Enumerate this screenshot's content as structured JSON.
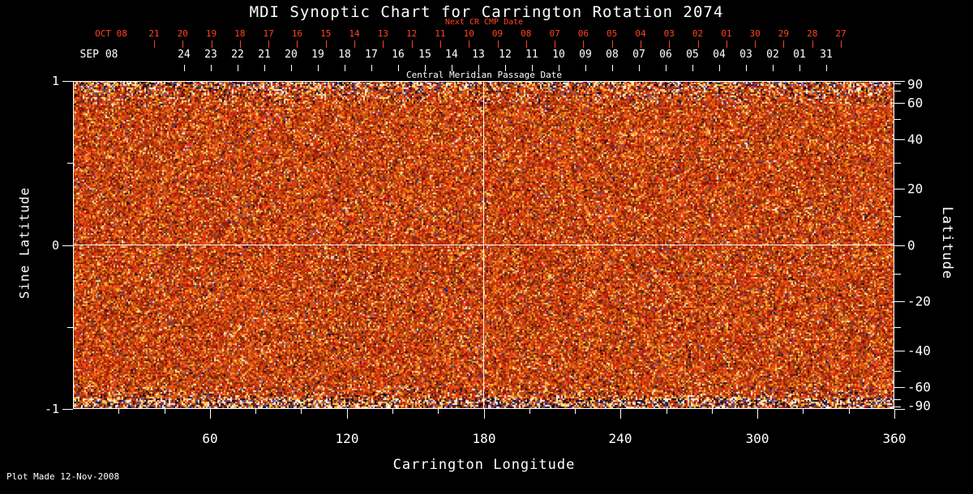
{
  "title": "MDI Synoptic Chart for Carrington Rotation 2074",
  "plot_made": "Plot Made 12-Nov-2008",
  "colors": {
    "background": "#000000",
    "axis": "#ffffff",
    "red_labels": "#ff4422",
    "reference_line": "#ffffff"
  },
  "top_axis": {
    "next_cr_label": "Next CR CMP Date",
    "cmp_label": "Central Meridian Passage Date",
    "red_month": "OCT 08",
    "red_dates": [
      "21",
      "20",
      "19",
      "18",
      "17",
      "16",
      "15",
      "14",
      "13",
      "12",
      "11",
      "10",
      "09",
      "08",
      "07",
      "06",
      "05",
      "04",
      "03",
      "02",
      "01",
      "30",
      "29",
      "28",
      "27"
    ],
    "white_month": "SEP 08",
    "white_dates": [
      "24",
      "23",
      "22",
      "21",
      "20",
      "19",
      "18",
      "17",
      "16",
      "15",
      "14",
      "13",
      "12",
      "11",
      "10",
      "09",
      "08",
      "07",
      "06",
      "05",
      "04",
      "03",
      "02",
      "01",
      "31"
    ]
  },
  "left_axis": {
    "label": "Sine Latitude",
    "tick_labels": [
      "1",
      "0",
      "-1"
    ],
    "tick_values": [
      1,
      0,
      -1
    ],
    "minor_tick_values": [
      0.5,
      -0.5
    ]
  },
  "right_axis": {
    "label": "Latitude",
    "tick_labels": [
      "90",
      "60",
      "40",
      "20",
      "0",
      "-20",
      "-40",
      "-60",
      "-90"
    ],
    "tick_values": [
      90,
      60,
      40,
      20,
      0,
      -20,
      -40,
      -60,
      -90
    ]
  },
  "bottom_axis": {
    "label": "Carrington Longitude",
    "tick_labels": [
      "60",
      "120",
      "180",
      "240",
      "300",
      "360"
    ],
    "tick_values": [
      60,
      120,
      180,
      240,
      300,
      360
    ],
    "range": [
      0,
      360
    ]
  },
  "chart_data": {
    "type": "heatmap",
    "title": "MDI Synoptic Chart for Carrington Rotation 2074",
    "xlabel": "Carrington Longitude",
    "ylabel_left": "Sine Latitude",
    "ylabel_right": "Latitude",
    "xlim": [
      0,
      360
    ],
    "ylim_sine_latitude": [
      -1,
      1
    ],
    "x_ticks": [
      60,
      120,
      180,
      240,
      300,
      360
    ],
    "left_ticks_sine_latitude": [
      1,
      0,
      -1
    ],
    "right_ticks_latitude_deg": [
      90,
      60,
      40,
      20,
      0,
      -20,
      -40,
      -60,
      -90
    ],
    "cmp_dates_sep_2008": [
      "24",
      "23",
      "22",
      "21",
      "20",
      "19",
      "18",
      "17",
      "16",
      "15",
      "14",
      "13",
      "12",
      "11",
      "10",
      "09",
      "08",
      "07",
      "06",
      "05",
      "04",
      "03",
      "02",
      "01",
      "31"
    ],
    "next_cr_cmp_dates_oct_2008": [
      "21",
      "20",
      "19",
      "18",
      "17",
      "16",
      "15",
      "14",
      "13",
      "12",
      "11",
      "10",
      "09",
      "08",
      "07",
      "06",
      "05",
      "04",
      "03",
      "02",
      "01",
      "30",
      "29",
      "28",
      "27"
    ],
    "reference_lines": {
      "longitude": 180,
      "sine_latitude": 0
    },
    "content": "Full-surface solar photospheric magnetic field synoptic map rendered as dense fine-grained red/orange magnetogram noise with scattered bright yellow-white and dark black/blue speckles; speckle noise is heaviest near the poles (sine latitude near +1 and -1, especially the bottom band)",
    "palette": {
      "base_low": "#8a1a00",
      "base_mid": "#d84a10",
      "base_high": "#ff8c28",
      "bright_speckle": "#ffe9b8",
      "dark_speckle": "#140408",
      "blue_speckle": "#3c50b4"
    },
    "grid": "white crosshair at longitude 180 and sine latitude 0",
    "legend": "none"
  }
}
